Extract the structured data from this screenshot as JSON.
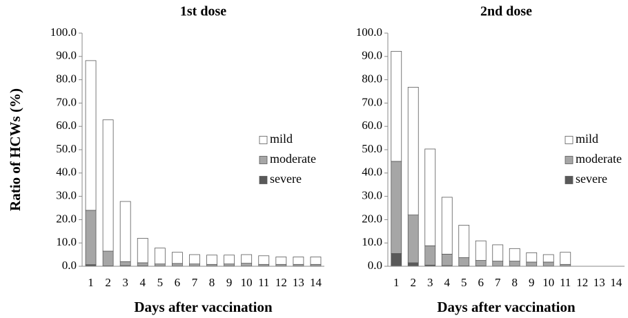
{
  "chart_data": [
    {
      "type": "stacked_bar",
      "title": "1st dose",
      "xlabel": "Days after vaccination",
      "ylabel": "Ratio of HCWs (%)",
      "categories": [
        "1",
        "2",
        "3",
        "4",
        "5",
        "6",
        "7",
        "8",
        "9",
        "10",
        "11",
        "12",
        "13",
        "14"
      ],
      "series": [
        {
          "name": "severe",
          "color": "#595959",
          "values": [
            0.7,
            0.2,
            0.3,
            0.2,
            0.1,
            0.1,
            0.1,
            0.1,
            0.1,
            0.1,
            0.1,
            0.1,
            0.1,
            0.1
          ]
        },
        {
          "name": "moderate",
          "color": "#a6a6a6",
          "values": [
            23.3,
            6.3,
            1.7,
            1.3,
            0.9,
            1.1,
            0.9,
            0.7,
            0.9,
            1.2,
            0.7,
            0.7,
            0.7,
            0.7
          ]
        },
        {
          "name": "mild",
          "color": "#ffffff",
          "values": [
            64.2,
            56.3,
            25.8,
            10.5,
            6.8,
            4.8,
            4.0,
            4.0,
            3.8,
            3.7,
            3.7,
            3.2,
            3.2,
            3.2
          ]
        }
      ],
      "ylim": [
        0,
        100
      ],
      "yticks": [
        {
          "value": 0,
          "label": "0.0"
        },
        {
          "value": 10,
          "label": "10.0"
        },
        {
          "value": 20,
          "label": "20.0"
        },
        {
          "value": 30,
          "label": "30.0"
        },
        {
          "value": 40,
          "label": "40.0"
        },
        {
          "value": 50,
          "label": "50.0"
        },
        {
          "value": 60,
          "label": "60.0"
        },
        {
          "value": 70,
          "label": "70.0"
        },
        {
          "value": 80,
          "label": "80.0"
        },
        {
          "value": 90,
          "label": "90.0"
        },
        {
          "value": 100,
          "label": "100.0"
        }
      ],
      "legend": "right"
    },
    {
      "type": "stacked_bar",
      "title": "2nd dose",
      "xlabel": "Days after vaccination",
      "categories": [
        "1",
        "2",
        "3",
        "4",
        "5",
        "6",
        "7",
        "8",
        "9",
        "10",
        "11",
        "12",
        "13",
        "14"
      ],
      "series": [
        {
          "name": "severe",
          "color": "#595959",
          "values": [
            5.5,
            1.5,
            0.5,
            0.3,
            0.2,
            0.2,
            0.1,
            0.1,
            0.1,
            0.1,
            0.1,
            0,
            0,
            0
          ]
        },
        {
          "name": "moderate",
          "color": "#a6a6a6",
          "values": [
            39.5,
            20.5,
            8.3,
            4.9,
            3.5,
            2.3,
            2.1,
            2.1,
            1.7,
            1.7,
            0.7,
            0,
            0,
            0
          ]
        },
        {
          "name": "mild",
          "color": "#ffffff",
          "values": [
            47.2,
            54.8,
            41.5,
            24.4,
            13.9,
            8.4,
            7.0,
            5.4,
            4.0,
            3.2,
            5.2,
            0,
            0,
            0
          ]
        }
      ],
      "ylim": [
        0,
        100
      ],
      "yticks": [
        {
          "value": 0,
          "label": "0.0"
        },
        {
          "value": 10,
          "label": "10.0"
        },
        {
          "value": 20,
          "label": "20.0"
        },
        {
          "value": 30,
          "label": "30.0"
        },
        {
          "value": 40,
          "label": "40.0"
        },
        {
          "value": 50,
          "label": "50.0"
        },
        {
          "value": 60,
          "label": "60.0"
        },
        {
          "value": 70,
          "label": "70.0"
        },
        {
          "value": 80,
          "label": "80.0"
        },
        {
          "value": 90,
          "label": "90.0"
        },
        {
          "value": 100,
          "label": "100.0"
        }
      ],
      "legend": "right"
    }
  ]
}
